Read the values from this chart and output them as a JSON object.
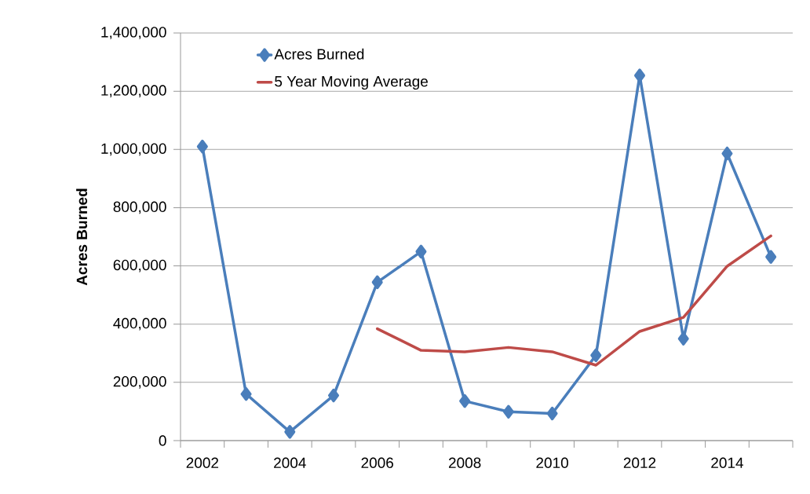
{
  "chart_data": {
    "type": "line",
    "ylabel": "Acres Burned",
    "categories": [
      "2002",
      null,
      "2004",
      null,
      "2006",
      null,
      "2008",
      null,
      "2010",
      null,
      "2012",
      null,
      "2014",
      null
    ],
    "ylim": [
      0,
      1400000
    ],
    "yticks": [
      {
        "value": 0,
        "label": "0"
      },
      {
        "value": 200000,
        "label": "200,000"
      },
      {
        "value": 400000,
        "label": "400,000"
      },
      {
        "value": 600000,
        "label": "600,000"
      },
      {
        "value": 800000,
        "label": "800,000"
      },
      {
        "value": 1000000,
        "label": "1,000,000"
      },
      {
        "value": 1200000,
        "label": "1,200,000"
      },
      {
        "value": 1400000,
        "label": "1,400,000"
      }
    ],
    "grid": "y",
    "legend": "top left",
    "series": [
      {
        "name": "Acres Burned",
        "color": "#4a7ebb",
        "marker": "diamond",
        "values": [
          1010000,
          160000,
          30000,
          155000,
          544000,
          649000,
          136000,
          99000,
          93000,
          293000,
          1254000,
          350000,
          986000,
          631000
        ]
      },
      {
        "name": "5 Year Moving Average",
        "color": "#be4b48",
        "marker": "none",
        "values": [
          null,
          null,
          null,
          null,
          384000,
          310000,
          305000,
          320000,
          305000,
          259000,
          375000,
          423000,
          599000,
          703000
        ]
      }
    ]
  }
}
